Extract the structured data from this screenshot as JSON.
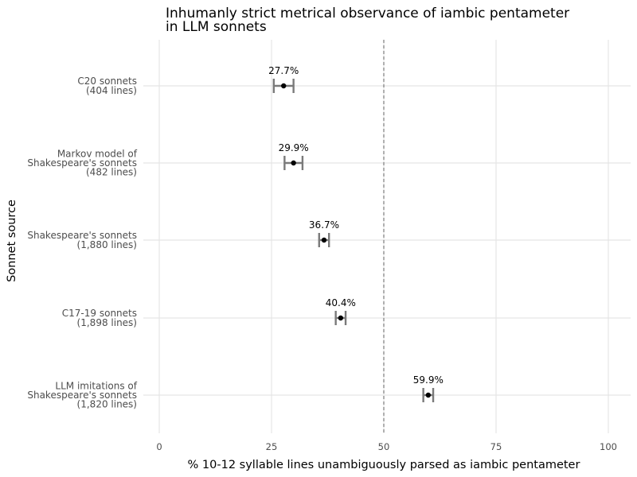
{
  "chart_data": {
    "type": "scatter",
    "title_lines": [
      "Inhumanly strict metrical observance of iambic pentameter",
      "in LLM sonnets"
    ],
    "xlabel": "% 10-12 syllable lines unambiguously parsed as iambic pentameter",
    "ylabel": "Sonnet source",
    "xlim": [
      0,
      105
    ],
    "xticks": [
      0,
      25,
      50,
      75,
      100
    ],
    "reference_line": 50,
    "grid": true,
    "legend": "none",
    "categories": [
      {
        "lines": [
          "C20 sonnets",
          "(404 lines)"
        ],
        "value": 27.7,
        "lo": 25.5,
        "hi": 29.9,
        "label": "27.7%"
      },
      {
        "lines": [
          "Markov model of",
          "Shakespeare's sonnets",
          "(482 lines)"
        ],
        "value": 29.9,
        "lo": 27.9,
        "hi": 31.9,
        "label": "29.9%"
      },
      {
        "lines": [
          "Shakespeare's sonnets",
          "(1,880 lines)"
        ],
        "value": 36.7,
        "lo": 35.6,
        "hi": 37.8,
        "label": "36.7%"
      },
      {
        "lines": [
          "C17-19 sonnets",
          "(1,898 lines)"
        ],
        "value": 40.4,
        "lo": 39.3,
        "hi": 41.5,
        "label": "40.4%"
      },
      {
        "lines": [
          "LLM imitations of",
          "Shakespeare's sonnets",
          "(1,820 lines)"
        ],
        "value": 59.9,
        "lo": 58.8,
        "hi": 61.0,
        "label": "59.9%"
      }
    ]
  }
}
